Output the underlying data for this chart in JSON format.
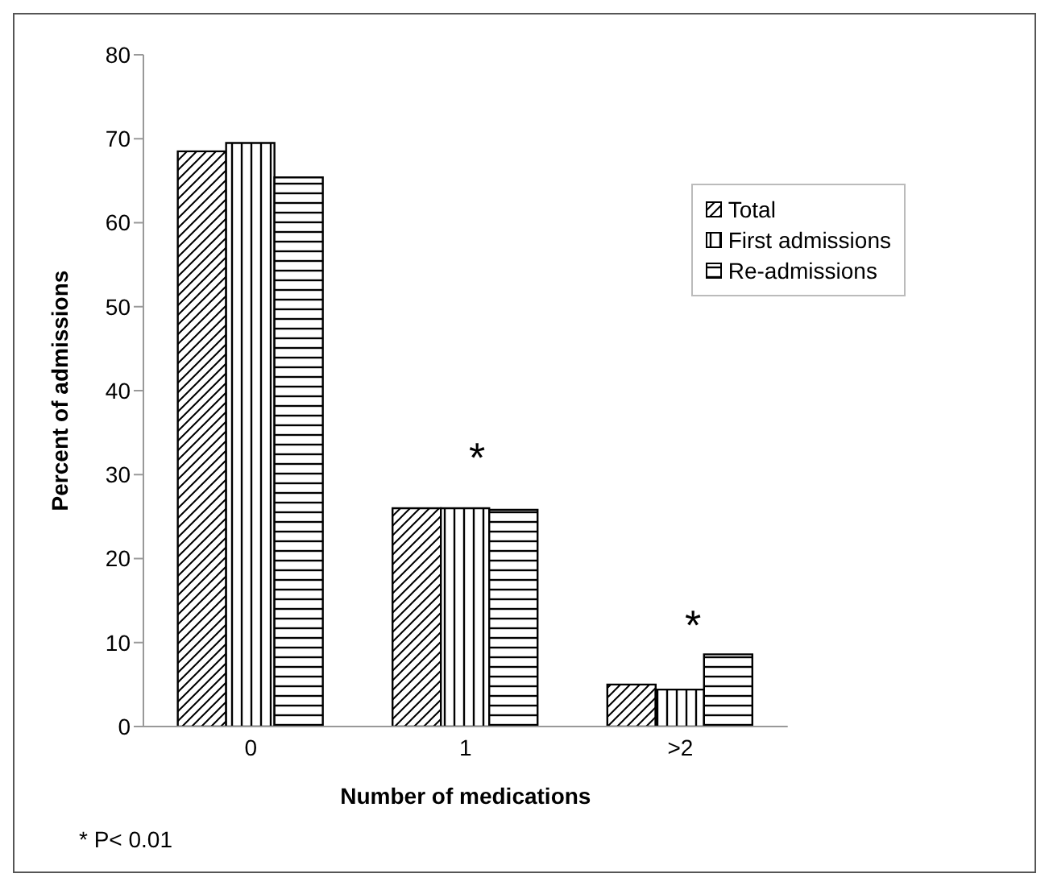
{
  "chart_data": {
    "type": "bar",
    "xlabel": "Number of medications",
    "ylabel": "Percent of  admissions",
    "categories": [
      "0",
      "1",
      ">2"
    ],
    "series": [
      {
        "name": "Total",
        "color": "#000000",
        "values": [
          68.5,
          26,
          5
        ]
      },
      {
        "name": "First admissions",
        "color": "#000000",
        "values": [
          69.5,
          26,
          4.4
        ]
      },
      {
        "name": "Re-admissions",
        "color": "#000000",
        "values": [
          65.4,
          25.8,
          8.6
        ]
      }
    ],
    "ylim": [
      0,
      80
    ],
    "yticks": [
      0,
      10,
      20,
      30,
      40,
      50,
      60,
      70,
      80
    ],
    "grid": false,
    "legend": "top right",
    "annotations": [
      "*",
      "*",
      "* P< 0.01"
    ]
  }
}
